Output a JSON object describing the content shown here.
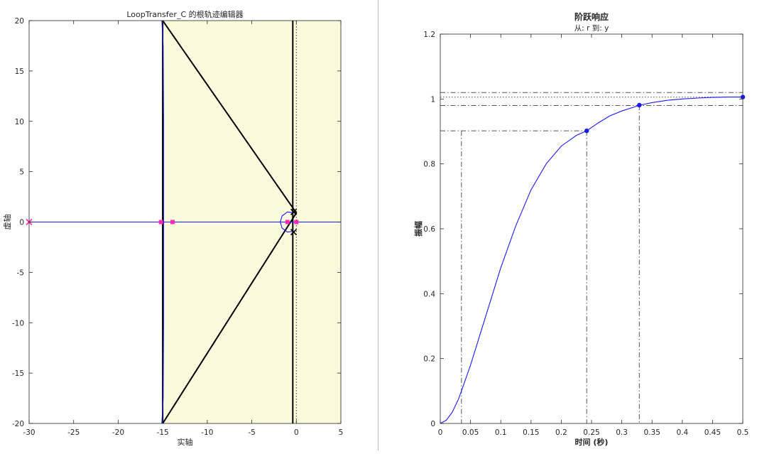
{
  "chart_data": [
    {
      "type": "line",
      "title": "LoopTransfer_C 的根轨迹编辑器",
      "xlabel": "实轴",
      "ylabel": "虚轴",
      "xlim": [
        -30,
        5
      ],
      "ylim": [
        -20,
        20
      ],
      "xticks": [
        -30,
        -25,
        -20,
        -15,
        -10,
        -5,
        0,
        5
      ],
      "yticks": [
        -20,
        -15,
        -10,
        -5,
        0,
        5,
        10,
        15,
        20
      ],
      "grid": false,
      "shaded_region": {
        "x": [
          -15,
          5
        ],
        "y": [
          -20,
          20
        ],
        "color": "#fafadc"
      },
      "colors": {
        "locus": "#1a1aff",
        "constraint": "#000000",
        "marker": "#ff2bb5",
        "pole_cross": "#1a1aff"
      },
      "series": [
        {
          "values": [
            [
              -30,
              0
            ],
            [
              5,
              0
            ]
          ]
        },
        {
          "values": [
            [
              -15.1,
              20
            ],
            [
              -14.95,
              17.5
            ],
            [
              -14.9,
              10
            ],
            [
              -14.9,
              0
            ],
            [
              -14.9,
              -10
            ],
            [
              -14.95,
              -17.5
            ],
            [
              -15.1,
              -20
            ]
          ]
        },
        {
          "values": [
            [
              -0.2,
              0.9
            ],
            [
              -1.0,
              1.0
            ],
            [
              -1.6,
              0.6
            ],
            [
              -1.8,
              0
            ],
            [
              -1.6,
              -0.6
            ],
            [
              -1.0,
              -1.0
            ],
            [
              -0.2,
              -0.9
            ]
          ]
        }
      ],
      "constraints": [
        {
          "values": [
            [
              -15,
              20
            ],
            [
              0,
              0.9
            ],
            [
              -15,
              -20
            ]
          ]
        },
        {
          "values": [
            [
              -15,
              20
            ],
            [
              -15,
              -20
            ]
          ]
        },
        {
          "values": [
            [
              -0.4,
              20
            ],
            [
              -0.4,
              -20
            ]
          ]
        }
      ],
      "reference_lines": [
        {
          "values": [
            [
              0,
              20
            ],
            [
              0,
              -20
            ]
          ],
          "style": "dotted"
        },
        {
          "values": [
            [
              0,
              0
            ],
            [
              5,
              0
            ]
          ],
          "style": "dotted"
        }
      ],
      "markers": [
        {
          "x": -15.2,
          "y": 0,
          "shape": "square"
        },
        {
          "x": -13.9,
          "y": 0,
          "shape": "square"
        },
        {
          "x": -1.0,
          "y": 0,
          "shape": "square"
        },
        {
          "x": 0,
          "y": 0,
          "shape": "square"
        },
        {
          "x": -30,
          "y": 0,
          "shape": "x"
        },
        {
          "x": -0.3,
          "y": 1.0,
          "shape": "x"
        },
        {
          "x": -0.3,
          "y": -1.0,
          "shape": "x"
        }
      ]
    },
    {
      "type": "line",
      "title": "阶跃响应",
      "subtitle": "从: r  到: y",
      "xlabel": "时间 (秒)",
      "ylabel": "振幅",
      "xlim": [
        0,
        0.5
      ],
      "ylim": [
        0,
        1.2
      ],
      "xticks": [
        0,
        0.05,
        0.1,
        0.15,
        0.2,
        0.25,
        0.3,
        0.35,
        0.4,
        0.45,
        0.5
      ],
      "yticks": [
        0,
        0.2,
        0.4,
        0.6,
        0.8,
        1,
        1.2
      ],
      "grid": false,
      "colors": {
        "response": "#1a1aff",
        "guides": "#555555"
      },
      "series": [
        {
          "x": [
            0,
            0.01,
            0.02,
            0.03,
            0.035,
            0.05,
            0.075,
            0.1,
            0.125,
            0.15,
            0.175,
            0.2,
            0.225,
            0.242,
            0.26,
            0.28,
            0.3,
            0.33,
            0.35,
            0.375,
            0.4,
            0.425,
            0.45,
            0.475,
            0.5
          ],
          "y": [
            0,
            0.01,
            0.035,
            0.075,
            0.1,
            0.18,
            0.33,
            0.48,
            0.61,
            0.72,
            0.8,
            0.855,
            0.888,
            0.902,
            0.925,
            0.948,
            0.963,
            0.981,
            0.989,
            0.996,
            1.0,
            1.003,
            1.005,
            1.006,
            1.006
          ]
        }
      ],
      "points": [
        {
          "x": 0.242,
          "y": 0.902
        },
        {
          "x": 0.329,
          "y": 0.981
        },
        {
          "x": 0.5,
          "y": 1.006
        }
      ],
      "guides": [
        {
          "values": [
            [
              0,
              0.902
            ],
            [
              0.242,
              0.902
            ]
          ],
          "style": "dashdot"
        },
        {
          "values": [
            [
              0.242,
              0.902
            ],
            [
              0.242,
              0
            ]
          ],
          "style": "dashdot"
        },
        {
          "values": [
            [
              0.035,
              0.902
            ],
            [
              0.035,
              0
            ]
          ],
          "style": "dashdot"
        },
        {
          "values": [
            [
              0.329,
              0.981
            ],
            [
              0.329,
              0
            ]
          ],
          "style": "dashdot"
        },
        {
          "values": [
            [
              0,
              1.02
            ],
            [
              0.5,
              1.02
            ]
          ],
          "style": "dashdot"
        },
        {
          "values": [
            [
              0,
              0.98
            ],
            [
              0.5,
              0.98
            ]
          ],
          "style": "dashdot"
        },
        {
          "values": [
            [
              0,
              1.006
            ],
            [
              0.5,
              1.006
            ]
          ],
          "style": "dotted"
        }
      ]
    }
  ]
}
